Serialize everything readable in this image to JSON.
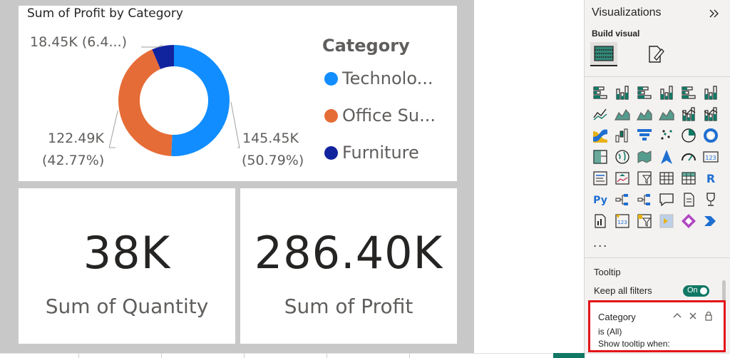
{
  "report": {
    "donut_title": "Sum of Profit by Category",
    "legend_title": "Category",
    "cards": [
      {
        "value": "38K",
        "label": "Sum of Quantity"
      },
      {
        "value": "286.40K",
        "label": "Sum of Profit"
      }
    ]
  },
  "chart_data": {
    "type": "pie",
    "title": "Sum of Profit by Category",
    "legend_title": "Category",
    "categories": [
      "Technology",
      "Office Supplies",
      "Furniture"
    ],
    "legend_labels": [
      "Technolo...",
      "Office Su...",
      "Furniture"
    ],
    "values": [
      145.45,
      122.49,
      18.45
    ],
    "unit": "K",
    "percents": [
      50.79,
      42.77,
      6.44
    ],
    "data_labels": [
      {
        "value": "145.45K",
        "percent": "(50.79%)"
      },
      {
        "value": "122.49K",
        "percent": "(42.77%)"
      },
      {
        "value": "18.45K (6.4...)"
      }
    ],
    "colors": [
      "#118dff",
      "#e66c37",
      "#12239e"
    ],
    "legend_position": "right",
    "style": "donut"
  },
  "viz_pane": {
    "title": "Visualizations",
    "build_label": "Build visual",
    "more": "...",
    "tooltip_section": "Tooltip",
    "keep_all_filters": "Keep all filters",
    "toggle_text": "On",
    "filter": {
      "field": "Category",
      "state": "is (All)",
      "show_when": "Show tooltip when:"
    },
    "icons": [
      "stacked-bar-chart-icon",
      "stacked-column-chart-icon",
      "clustered-bar-chart-icon",
      "clustered-column-chart-icon",
      "100-stacked-bar-chart-icon",
      "100-stacked-column-chart-icon",
      "line-chart-icon",
      "area-chart-icon",
      "stacked-area-chart-icon",
      "100-stacked-area-chart-icon",
      "line-and-stacked-column-icon",
      "line-and-clustered-column-icon",
      "ribbon-chart-icon",
      "waterfall-chart-icon",
      "funnel-chart-icon",
      "scatter-chart-icon",
      "pie-chart-icon",
      "donut-chart-icon",
      "treemap-icon",
      "map-icon",
      "filled-map-icon",
      "azure-map-icon",
      "gauge-icon",
      "card-icon",
      "multi-row-card-icon",
      "kpi-icon",
      "slicer-icon",
      "table-icon",
      "matrix-icon",
      "r-visual-icon",
      "python-visual-icon",
      "key-influencers-icon",
      "decomposition-tree-icon",
      "qa-icon",
      "smart-narrative-icon",
      "metrics-icon",
      "paginated-report-icon",
      "power-apps-icon",
      "new-slicer-icon",
      "power-automate-icon",
      "power-apps-diamond-icon",
      "power-automate-chevron-icon"
    ],
    "accent": "#117865",
    "highlight": "#e3151a"
  }
}
